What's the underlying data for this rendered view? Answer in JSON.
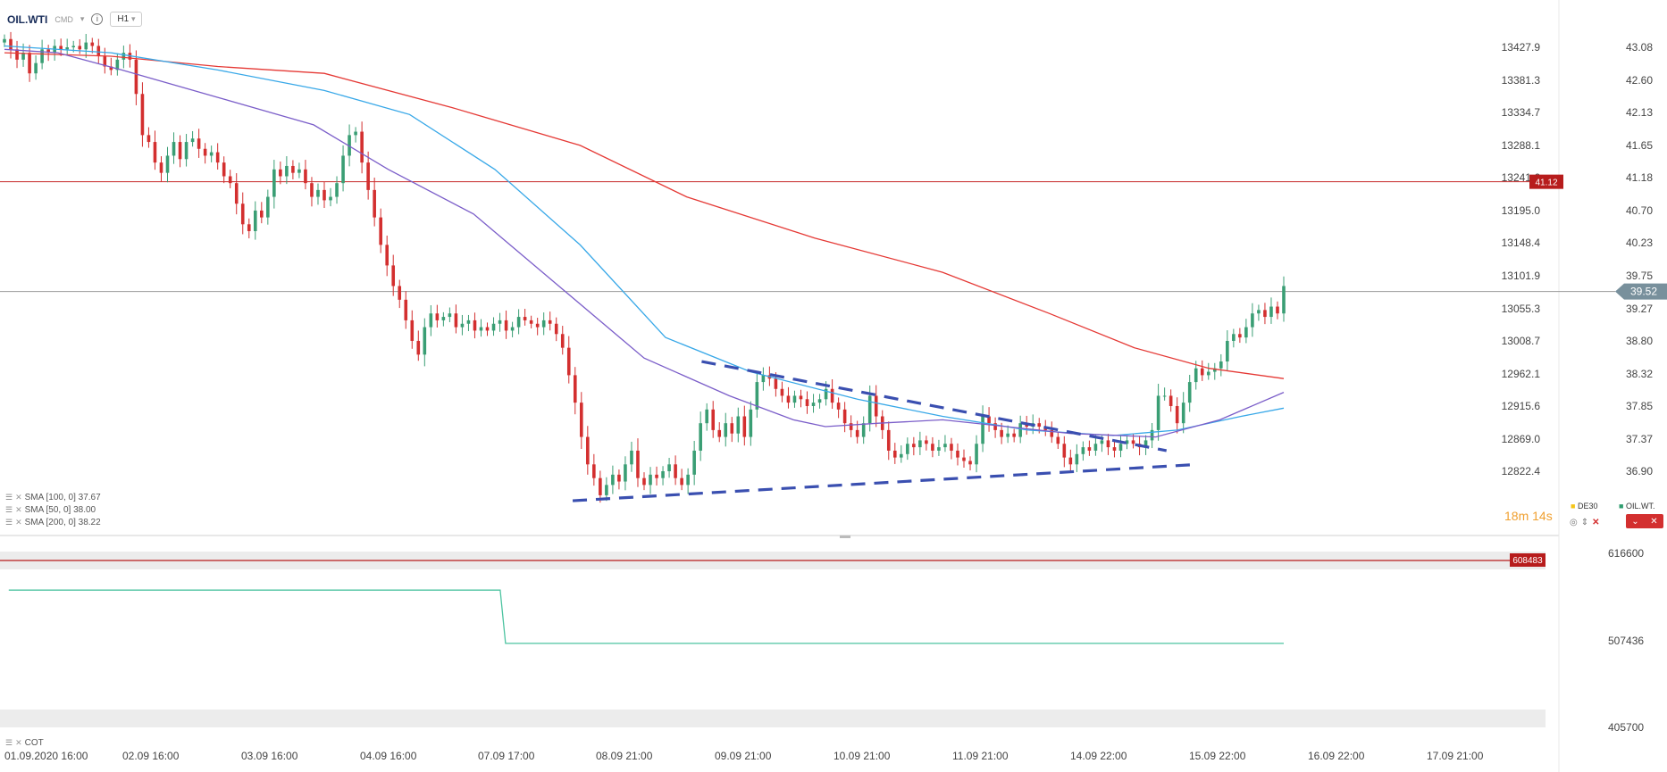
{
  "header": {
    "symbol": "OIL.WTI",
    "type": "CMD",
    "info": "i",
    "timeframe": "H1"
  },
  "legend": [
    {
      "label": "SMA [100, 0] 37.67"
    },
    {
      "label": "SMA [50, 0] 38.00"
    },
    {
      "label": "SMA [200, 0] 38.22"
    }
  ],
  "indicator_label": "COT",
  "timer": {
    "minutes": "18",
    "m": "m",
    "seconds": "14",
    "s": "s"
  },
  "corner_legend": [
    {
      "label": "DE30",
      "color": "#f5c518"
    },
    {
      "label": "OIL.WT.",
      "color": "#2e9c6e"
    }
  ],
  "pill_icons": [
    "chevron-icon",
    "close-icon"
  ],
  "colors": {
    "bull": "#3a9e74",
    "bear": "#d32f2f",
    "sma50": "#7b5ec9",
    "sma100": "#38a8e8",
    "sma200": "#e53935",
    "trendline": "#3a4fb0",
    "resistance": "#c62828",
    "price_line": "#9a9a9a",
    "cot_line": "#4cc3a0"
  },
  "chart_data": [
    {
      "type": "candlestick",
      "y_axis_left": [
        "13427.9",
        "13381.3",
        "13334.7",
        "13288.1",
        "13241.6",
        "13195.0",
        "13148.4",
        "13101.9",
        "13055.3",
        "13008.7",
        "12962.1",
        "12915.6",
        "12869.0",
        "12822.4"
      ],
      "y_axis_right": [
        "43.08",
        "42.60",
        "42.13",
        "41.65",
        "41.18",
        "40.70",
        "40.23",
        "39.75",
        "39.27",
        "38.80",
        "38.32",
        "37.85",
        "37.37",
        "36.90"
      ],
      "ylim": [
        36.45,
        43.4
      ],
      "x_ticks": [
        "01.09.2020  16:00",
        "02.09  16:00",
        "03.09  16:00",
        "04.09  16:00",
        "07.09  17:00",
        "08.09  21:00",
        "09.09  21:00",
        "10.09  21:00",
        "11.09  21:00",
        "14.09  22:00",
        "15.09  22:00",
        "16.09  22:00",
        "17.09  21:00"
      ],
      "last_price": "39.52",
      "resistance_level": {
        "value": 41.12,
        "label": "41.12"
      },
      "close_series": [
        43.2,
        43.05,
        42.9,
        43.0,
        42.7,
        42.85,
        43.05,
        43.0,
        43.1,
        43.05,
        43.08,
        43.1,
        43.05,
        43.15,
        43.1,
        42.95,
        42.8,
        42.75,
        42.9,
        43.0,
        42.9,
        42.4,
        41.8,
        41.7,
        41.4,
        41.25,
        41.5,
        41.7,
        41.45,
        41.7,
        41.75,
        41.6,
        41.5,
        41.55,
        41.4,
        41.2,
        41.1,
        40.8,
        40.5,
        40.4,
        40.7,
        40.6,
        40.9,
        41.3,
        41.2,
        41.35,
        41.25,
        41.3,
        41.1,
        40.9,
        41.0,
        40.85,
        40.9,
        41.1,
        41.5,
        41.8,
        41.85,
        41.4,
        41.0,
        40.6,
        40.2,
        39.9,
        39.6,
        39.4,
        39.1,
        38.8,
        38.6,
        39.0,
        39.2,
        39.1,
        39.15,
        39.2,
        39.0,
        39.05,
        39.1,
        38.95,
        39.0,
        38.95,
        39.05,
        39.1,
        38.95,
        39.0,
        39.15,
        39.1,
        39.05,
        39.0,
        39.1,
        39.05,
        38.9,
        38.7,
        38.3,
        37.9,
        37.4,
        37.0,
        36.8,
        36.55,
        36.7,
        36.85,
        36.75,
        37.0,
        37.2,
        36.8,
        36.7,
        36.85,
        36.8,
        36.9,
        37.0,
        36.8,
        36.7,
        36.85,
        37.2,
        37.6,
        37.8,
        37.5,
        37.4,
        37.6,
        37.45,
        37.7,
        37.4,
        37.8,
        38.2,
        38.3,
        38.25,
        38.1,
        38.0,
        37.9,
        38.0,
        37.95,
        37.85,
        37.9,
        37.95,
        38.1,
        37.9,
        37.8,
        37.6,
        37.5,
        37.4,
        37.6,
        38.0,
        37.7,
        37.5,
        37.2,
        37.1,
        37.15,
        37.3,
        37.25,
        37.35,
        37.3,
        37.2,
        37.25,
        37.3,
        37.2,
        37.1,
        37.05,
        37.0,
        37.3,
        37.7,
        37.6,
        37.5,
        37.4,
        37.45,
        37.4,
        37.6,
        37.55,
        37.6,
        37.55,
        37.5,
        37.4,
        37.3,
        37.1,
        37.0,
        37.15,
        37.25,
        37.2,
        37.3,
        37.35,
        37.25,
        37.2,
        37.3,
        37.35,
        37.3,
        37.25,
        37.35,
        37.5,
        38.0,
        38.0,
        37.85,
        37.6,
        37.9,
        38.2,
        38.4,
        38.3,
        38.35,
        38.4,
        38.5,
        38.8,
        38.9,
        38.85,
        39.0,
        39.2,
        39.25,
        39.15,
        39.3,
        39.2,
        39.6
      ],
      "sma50": [
        [
          0,
          43.05
        ],
        [
          50,
          43.0
        ],
        [
          110,
          42.75
        ],
        [
          200,
          42.35
        ],
        [
          290,
          41.95
        ],
        [
          360,
          41.3
        ],
        [
          440,
          40.65
        ],
        [
          520,
          39.6
        ],
        [
          600,
          38.55
        ],
        [
          680,
          38.0
        ],
        [
          740,
          37.65
        ],
        [
          770,
          37.55
        ],
        [
          820,
          37.6
        ],
        [
          880,
          37.65
        ],
        [
          940,
          37.55
        ],
        [
          1000,
          37.45
        ],
        [
          1080,
          37.4
        ],
        [
          1140,
          37.65
        ],
        [
          1200,
          38.05
        ]
      ],
      "sma100": [
        [
          0,
          43.1
        ],
        [
          100,
          43.0
        ],
        [
          200,
          42.75
        ],
        [
          300,
          42.45
        ],
        [
          380,
          42.1
        ],
        [
          460,
          41.3
        ],
        [
          540,
          40.2
        ],
        [
          620,
          38.85
        ],
        [
          700,
          38.35
        ],
        [
          800,
          37.95
        ],
        [
          880,
          37.7
        ],
        [
          960,
          37.5
        ],
        [
          1040,
          37.42
        ],
        [
          1100,
          37.5
        ],
        [
          1160,
          37.7
        ],
        [
          1200,
          37.82
        ]
      ],
      "sma200": [
        [
          0,
          43.0
        ],
        [
          100,
          42.95
        ],
        [
          200,
          42.8
        ],
        [
          300,
          42.7
        ],
        [
          420,
          42.2
        ],
        [
          540,
          41.65
        ],
        [
          640,
          40.9
        ],
        [
          760,
          40.3
        ],
        [
          880,
          39.8
        ],
        [
          980,
          39.2
        ],
        [
          1060,
          38.7
        ],
        [
          1130,
          38.4
        ],
        [
          1200,
          38.25
        ]
      ],
      "trendlines": [
        {
          "from": [
            654,
            38.5
          ],
          "to": [
            1090,
            37.2
          ]
        },
        {
          "from": [
            533,
            36.47
          ],
          "to": [
            1120,
            37.0
          ]
        }
      ]
    },
    {
      "type": "line",
      "title": "COT",
      "y_axis": [
        "616600",
        "507436",
        "405700"
      ],
      "ylim": [
        405700,
        616600
      ],
      "reference_level": {
        "value": 608483,
        "label": "608483"
      },
      "series": [
        {
          "values": [
            [
              4,
              572000
            ],
            [
              465,
              572000
            ],
            [
              470,
              507436
            ],
            [
              1200,
              507436
            ]
          ]
        }
      ]
    }
  ]
}
